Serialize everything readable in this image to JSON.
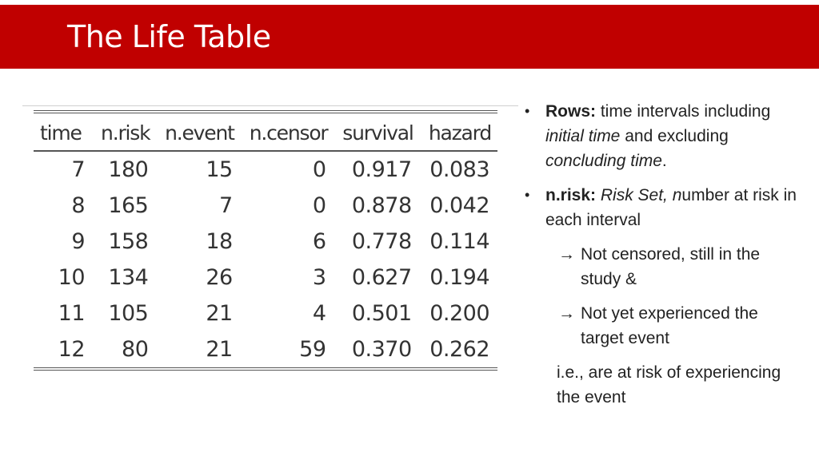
{
  "slide": {
    "title": "The Life Table"
  },
  "table": {
    "headers": [
      "time",
      "n.risk",
      "n.event",
      "n.censor",
      "survival",
      "hazard"
    ],
    "rows": [
      [
        "7",
        "180",
        "15",
        "0",
        "0.917",
        "0.083"
      ],
      [
        "8",
        "165",
        "7",
        "0",
        "0.878",
        "0.042"
      ],
      [
        "9",
        "158",
        "18",
        "6",
        "0.778",
        "0.114"
      ],
      [
        "10",
        "134",
        "26",
        "3",
        "0.627",
        "0.194"
      ],
      [
        "11",
        "105",
        "21",
        "4",
        "0.501",
        "0.200"
      ],
      [
        "12",
        "80",
        "21",
        "59",
        "0.370",
        "0.262"
      ]
    ]
  },
  "notes": {
    "rows": {
      "label": "Rows:",
      "text_1": " time intervals including ",
      "italic_1": "initial time",
      "text_2": " and excluding ",
      "italic_2": "concluding time",
      "text_3": "."
    },
    "nrisk": {
      "label": "n.risk:",
      "text_1": "  ",
      "italic_1": "Risk Set, n",
      "text_2": "umber at risk in each interval"
    },
    "sub_1": "Not censored, still in the study &",
    "sub_2": "Not yet experienced the target event",
    "conclusion": "i.e., are at risk of experiencing the event"
  }
}
